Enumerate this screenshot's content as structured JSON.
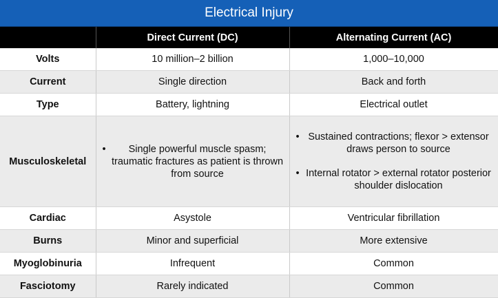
{
  "title": "Electrical Injury",
  "columns": [
    "",
    "Direct Current (DC)",
    "Alternating Current (AC)"
  ],
  "rows": [
    {
      "label": "Volts",
      "dc": "10 million–2 billion",
      "ac": "1,000–10,000"
    },
    {
      "label": "Current",
      "dc": "Single direction",
      "ac": "Back and forth"
    },
    {
      "label": "Type",
      "dc": "Battery, lightning",
      "ac": "Electrical outlet"
    },
    {
      "label": "Musculoskeletal",
      "dc_bullets": [
        "Single powerful muscle spasm; traumatic fractures as patient is thrown from source"
      ],
      "ac_bullets": [
        "Sustained contractions; flexor > extensor draws person to source",
        "Internal rotator > external rotator posterior shoulder dislocation"
      ]
    },
    {
      "label": "Cardiac",
      "dc": "Asystole",
      "ac": "Ventricular fibrillation"
    },
    {
      "label": "Burns",
      "dc": "Minor and superficial",
      "ac": "More extensive"
    },
    {
      "label": "Myoglobinuria",
      "dc": "Infrequent",
      "ac": "Common"
    },
    {
      "label": "Fasciotomy",
      "dc": "Rarely indicated",
      "ac": "Common"
    }
  ]
}
